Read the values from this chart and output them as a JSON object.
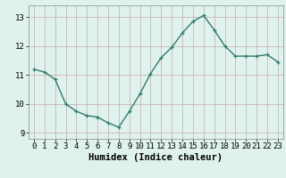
{
  "x": [
    0,
    1,
    2,
    3,
    4,
    5,
    6,
    7,
    8,
    9,
    10,
    11,
    12,
    13,
    14,
    15,
    16,
    17,
    18,
    19,
    20,
    21,
    22,
    23
  ],
  "y": [
    11.2,
    11.1,
    10.85,
    10.0,
    9.75,
    9.6,
    9.55,
    9.35,
    9.2,
    9.75,
    10.35,
    11.05,
    11.6,
    11.95,
    12.45,
    12.85,
    13.05,
    12.55,
    12.0,
    11.65,
    11.65,
    11.65,
    11.7,
    11.45
  ],
  "line_color": "#2e7d6e",
  "marker_color": "#2e7d6e",
  "bg_color": "#dff2ee",
  "grid_color": "#c9a9a9",
  "xlabel": "Humidex (Indice chaleur)",
  "ylim": [
    8.8,
    13.4
  ],
  "xlim": [
    -0.5,
    23.5
  ],
  "yticks": [
    9,
    10,
    11,
    12,
    13
  ],
  "xticks": [
    0,
    1,
    2,
    3,
    4,
    5,
    6,
    7,
    8,
    9,
    10,
    11,
    12,
    13,
    14,
    15,
    16,
    17,
    18,
    19,
    20,
    21,
    22,
    23
  ],
  "xlabel_fontsize": 7.5,
  "tick_fontsize": 6.5,
  "linewidth": 1.0,
  "markersize": 2.8
}
